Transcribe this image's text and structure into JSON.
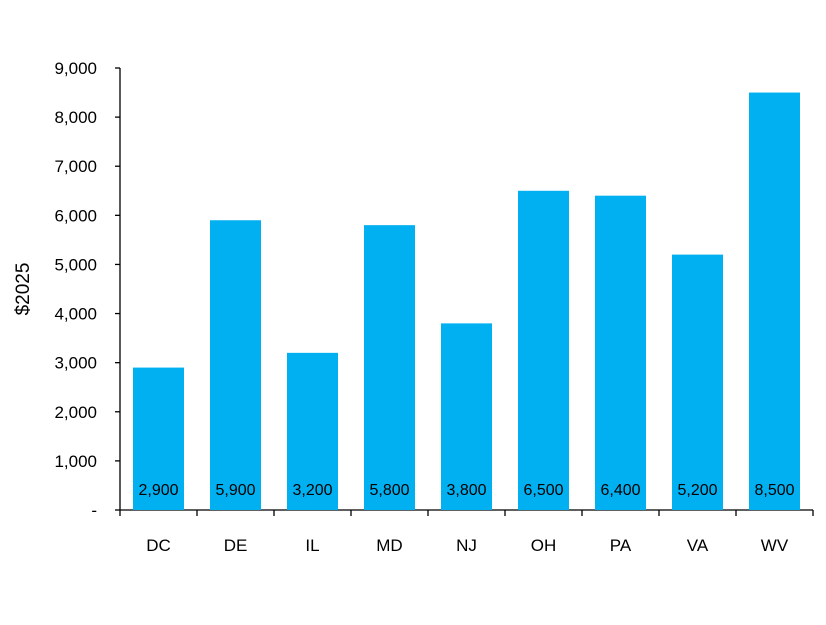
{
  "chart_data": {
    "type": "bar",
    "title": "",
    "xlabel": "",
    "ylabel": "$2025",
    "categories": [
      "DC",
      "DE",
      "IL",
      "MD",
      "NJ",
      "OH",
      "PA",
      "VA",
      "WV"
    ],
    "values": [
      2900,
      5900,
      3200,
      5800,
      3800,
      6500,
      6400,
      5200,
      8500
    ],
    "data_labels": [
      "2,900",
      "5,900",
      "3,200",
      "5,800",
      "3,800",
      "6,500",
      "6,400",
      "5,200",
      "8,500"
    ],
    "ylim": [
      0,
      9000
    ],
    "yticks": [
      0,
      1000,
      2000,
      3000,
      4000,
      5000,
      6000,
      7000,
      8000,
      9000
    ],
    "ytick_labels": [
      "-",
      "1,000",
      "2,000",
      "3,000",
      "4,000",
      "5,000",
      "6,000",
      "7,000",
      "8,000",
      "9,000"
    ],
    "bar_color": "#00B0F0",
    "grid": false,
    "legend": "none"
  }
}
